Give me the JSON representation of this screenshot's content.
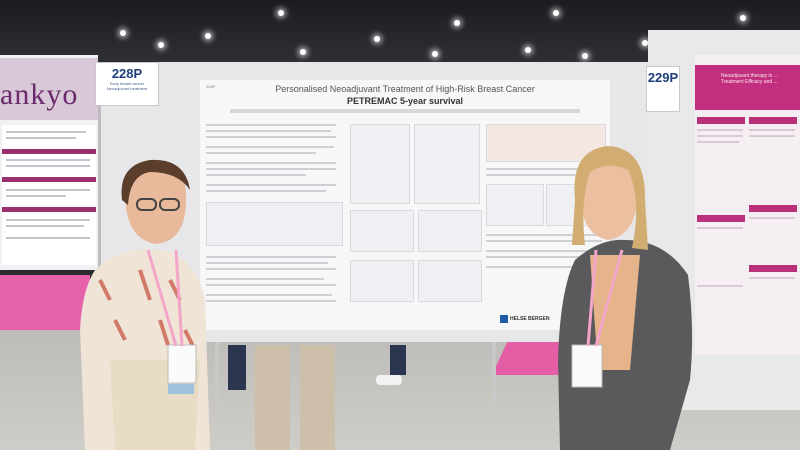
{
  "scene": {
    "description_type": "photo",
    "left_brand": "ankyo",
    "boards": [
      {
        "number": "228P",
        "subtitle_lines": [
          "Early breast cancer",
          "Neoadjuvant treatment"
        ]
      },
      {
        "number": "229P"
      }
    ],
    "poster": {
      "code": "228P",
      "title": "Personalised Neoadjuvant Treatment of High-Risk Breast Cancer",
      "subtitle": "PETREMAC 5-year survival",
      "institution_logo": "HELSE BERGEN"
    },
    "right_poster": {
      "heading": "Neoadjuvant therapy in ... Treatment Efficacy and ..."
    },
    "colors": {
      "brand_purple": "#6b2b6b",
      "magenta": "#c12f7e",
      "carpet_pink": "#e561a9",
      "board_label_blue": "#1f3f7a"
    }
  }
}
